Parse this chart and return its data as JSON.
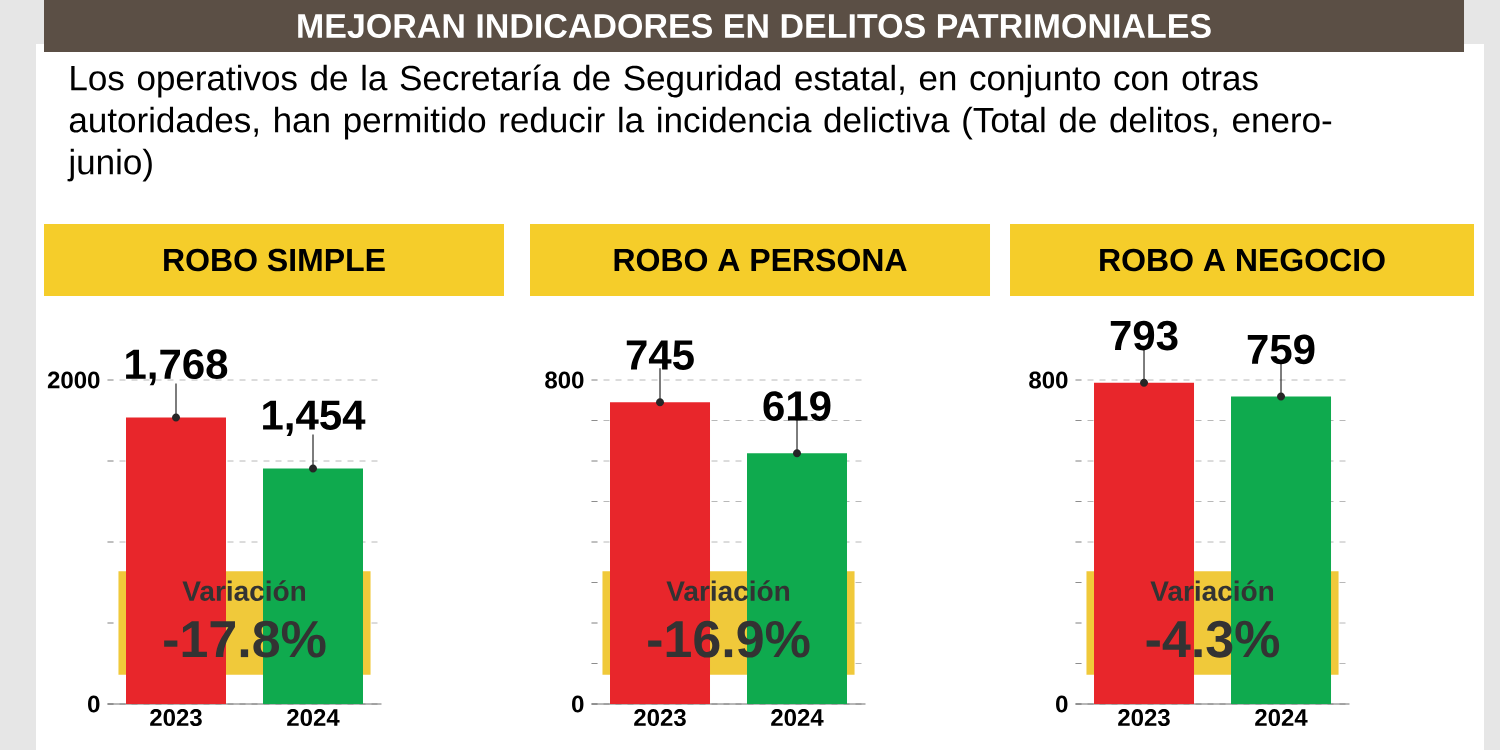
{
  "chart_data": [
    {
      "type": "other",
      "title": "MEJORAN INDICADORES EN DELITOS PATRIMONIALES",
      "subtitle": "Los operativos de la Secretaría de Seguridad estatal, en conjunto con otras autoridades, han permitido reducir la incidencia delictiva (Total de delitos, enero-junio)"
    },
    {
      "type": "bar",
      "title": "ROBO SIMPLE",
      "categories": [
        "2023",
        "2024"
      ],
      "values": [
        1768,
        1454
      ],
      "colors": [
        "#e8262b",
        "#0faa4e"
      ],
      "value_labels": [
        "1,768",
        "1,454"
      ],
      "ylim": [
        0,
        2000
      ],
      "yticks": [
        0,
        {
          "value": 500,
          "label": null
        },
        {
          "value": 1000,
          "label": null
        },
        {
          "value": 1500,
          "label": null
        },
        2000
      ],
      "grid": "y",
      "annotations": [
        "Variación",
        "-17.8%"
      ]
    },
    {
      "type": "bar",
      "title": "ROBO A PERSONA",
      "categories": [
        "2023",
        "2024"
      ],
      "values": [
        745,
        619
      ],
      "colors": [
        "#e8262b",
        "#0faa4e"
      ],
      "value_labels": [
        "745",
        "619"
      ],
      "ylim": [
        0,
        800
      ],
      "yticks": [
        0,
        {
          "value": 100,
          "label": null
        },
        {
          "value": 200,
          "label": null
        },
        {
          "value": 300,
          "label": null
        },
        {
          "value": 400,
          "label": null
        },
        {
          "value": 500,
          "label": null
        },
        {
          "value": 600,
          "label": null
        },
        {
          "value": 700,
          "label": null
        },
        800
      ],
      "grid": "y",
      "annotations": [
        "Variación",
        "-16.9%"
      ]
    },
    {
      "type": "bar",
      "title": "ROBO A NEGOCIO",
      "categories": [
        "2023",
        "2024"
      ],
      "values": [
        793,
        759
      ],
      "colors": [
        "#e8262b",
        "#0faa4e"
      ],
      "value_labels": [
        "793",
        "759"
      ],
      "ylim": [
        0,
        800
      ],
      "yticks": [
        0,
        {
          "value": 100,
          "label": null
        },
        {
          "value": 200,
          "label": null
        },
        {
          "value": 300,
          "label": null
        },
        {
          "value": 400,
          "label": null
        },
        {
          "value": 500,
          "label": null
        },
        {
          "value": 600,
          "label": null
        },
        {
          "value": 700,
          "label": null
        },
        800
      ],
      "grid": "y",
      "annotations": [
        "Variación",
        "-4.3%"
      ]
    }
  ]
}
